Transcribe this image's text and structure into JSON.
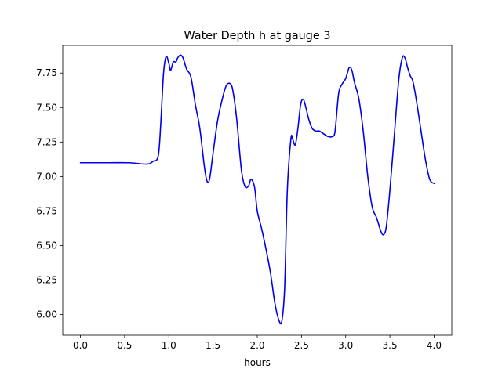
{
  "chart_data": {
    "type": "line",
    "title": "Water Depth h at gauge 3",
    "xlabel": "hours",
    "ylabel": "",
    "xlim": [
      -0.2,
      4.2
    ],
    "ylim": [
      5.85,
      7.95
    ],
    "grid": false,
    "legend": "none",
    "x_ticks": [
      0.0,
      0.5,
      1.0,
      1.5,
      2.0,
      2.5,
      3.0,
      3.5,
      4.0
    ],
    "x_tick_labels": [
      "0.0",
      "0.5",
      "1.0",
      "1.5",
      "2.0",
      "2.5",
      "3.0",
      "3.5",
      "4.0"
    ],
    "y_ticks": [
      6.0,
      6.25,
      6.5,
      6.75,
      7.0,
      7.25,
      7.5,
      7.75
    ],
    "y_tick_labels": [
      "6.00",
      "6.25",
      "6.50",
      "6.75",
      "7.00",
      "7.25",
      "7.50",
      "7.75"
    ],
    "series": [
      {
        "color": "#0000ee",
        "x": [
          0.0,
          0.3,
          0.55,
          0.75,
          0.82,
          0.88,
          0.91,
          0.94,
          0.97,
          1.0,
          1.02,
          1.05,
          1.08,
          1.1,
          1.13,
          1.16,
          1.2,
          1.25,
          1.3,
          1.35,
          1.4,
          1.43,
          1.46,
          1.5,
          1.55,
          1.6,
          1.65,
          1.7,
          1.73,
          1.77,
          1.82,
          1.86,
          1.9,
          1.93,
          1.97,
          2.0,
          2.05,
          2.1,
          2.15,
          2.2,
          2.25,
          2.28,
          2.31,
          2.34,
          2.38,
          2.4,
          2.43,
          2.46,
          2.49,
          2.52,
          2.55,
          2.58,
          2.62,
          2.66,
          2.7,
          2.75,
          2.8,
          2.85,
          2.88,
          2.92,
          2.96,
          3.0,
          3.04,
          3.07,
          3.1,
          3.15,
          3.2,
          3.25,
          3.3,
          3.35,
          3.4,
          3.43,
          3.46,
          3.5,
          3.55,
          3.6,
          3.64,
          3.67,
          3.7,
          3.73,
          3.76,
          3.8,
          3.85,
          3.9,
          3.95,
          4.0
        ],
        "y": [
          7.1,
          7.1,
          7.1,
          7.09,
          7.11,
          7.15,
          7.4,
          7.75,
          7.87,
          7.82,
          7.77,
          7.83,
          7.83,
          7.86,
          7.88,
          7.86,
          7.78,
          7.72,
          7.52,
          7.35,
          7.08,
          6.97,
          6.98,
          7.17,
          7.4,
          7.55,
          7.66,
          7.67,
          7.6,
          7.4,
          7.05,
          6.93,
          6.93,
          6.98,
          6.92,
          6.75,
          6.62,
          6.47,
          6.3,
          6.08,
          5.95,
          5.96,
          6.2,
          6.9,
          7.27,
          7.27,
          7.23,
          7.35,
          7.52,
          7.56,
          7.5,
          7.42,
          7.35,
          7.33,
          7.33,
          7.31,
          7.29,
          7.29,
          7.33,
          7.6,
          7.67,
          7.71,
          7.79,
          7.77,
          7.68,
          7.56,
          7.32,
          7.0,
          6.78,
          6.7,
          6.6,
          6.58,
          6.64,
          6.9,
          7.3,
          7.7,
          7.86,
          7.86,
          7.79,
          7.73,
          7.69,
          7.55,
          7.34,
          7.13,
          6.98,
          6.95
        ]
      }
    ]
  }
}
